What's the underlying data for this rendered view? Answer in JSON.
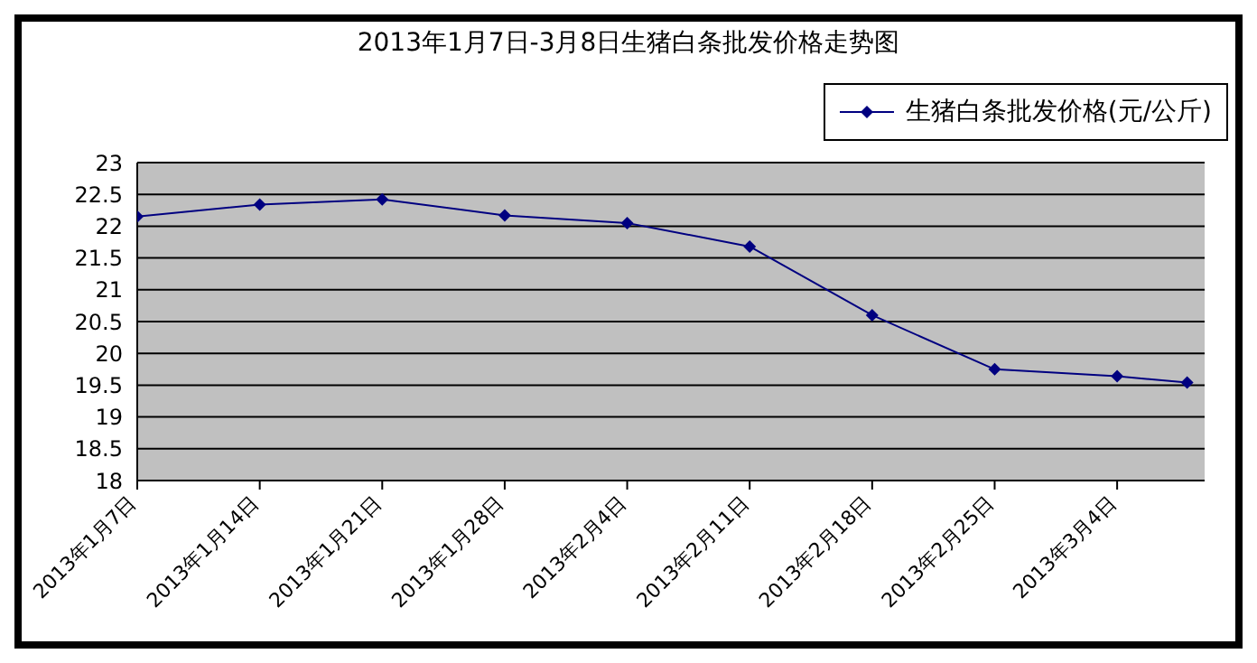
{
  "chart_data": {
    "type": "line",
    "title": "2013年1月7日-3月8日生猪白条批发价格走势图",
    "x": [
      "2013-01-07",
      "2013-01-14",
      "2013-01-21",
      "2013-01-28",
      "2013-02-04",
      "2013-02-11",
      "2013-02-18",
      "2013-02-25",
      "2013-03-04",
      "2013-03-08"
    ],
    "series": [
      {
        "name": "生猪白条批发价格(元/公斤)",
        "color": "#000080",
        "values": [
          22.15,
          22.34,
          22.42,
          22.17,
          22.05,
          21.68,
          20.6,
          19.75,
          19.64,
          19.54
        ]
      }
    ],
    "xlim": [
      "2013-01-07",
      "2013-03-09"
    ],
    "xticks": [
      {
        "value": "2013-01-07",
        "label": "2013年1月7日"
      },
      {
        "value": "2013-01-14",
        "label": "2013年1月14日"
      },
      {
        "value": "2013-01-21",
        "label": "2013年1月21日"
      },
      {
        "value": "2013-01-28",
        "label": "2013年1月28日"
      },
      {
        "value": "2013-02-04",
        "label": "2013年2月4日"
      },
      {
        "value": "2013-02-11",
        "label": "2013年2月11日"
      },
      {
        "value": "2013-02-18",
        "label": "2013年2月18日"
      },
      {
        "value": "2013-02-25",
        "label": "2013年2月25日"
      },
      {
        "value": "2013-03-04",
        "label": "2013年3月4日"
      }
    ],
    "ylim": [
      18,
      23
    ],
    "yticks": [
      18,
      18.5,
      19,
      19.5,
      20,
      20.5,
      21,
      21.5,
      22,
      22.5,
      23
    ],
    "grid": "y",
    "legend": "top right",
    "marker": "diamond",
    "line_style": "solid"
  }
}
